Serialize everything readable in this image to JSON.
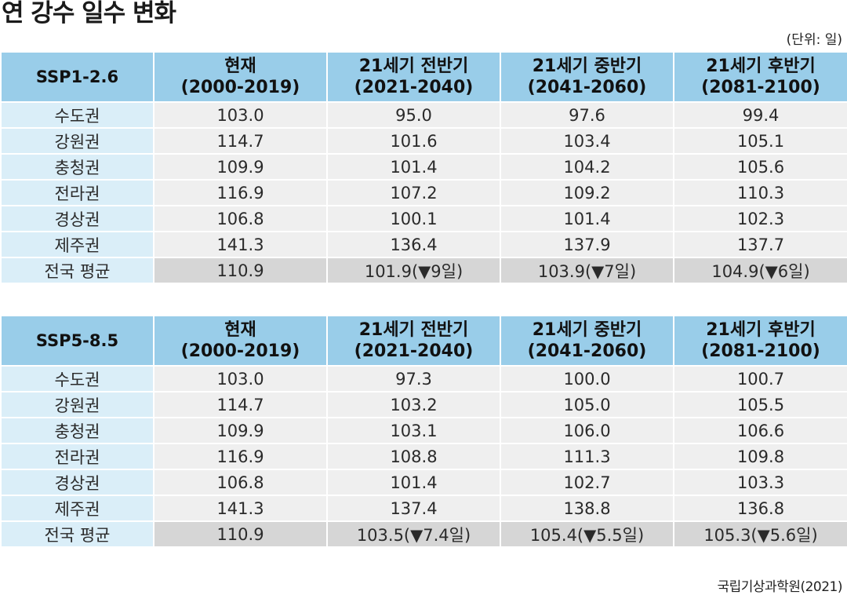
{
  "title": "연 강수 일수 변화",
  "unit": "(단위: 일)",
  "source": "국립기상과학원(2021)",
  "tables": [
    {
      "scenario": "SSP1-2.6",
      "headers": [
        {
          "line1": "현재",
          "line2": "(2000-2019)"
        },
        {
          "line1": "21세기 전반기",
          "line2": "(2021-2040)"
        },
        {
          "line1": "21세기 중반기",
          "line2": "(2041-2060)"
        },
        {
          "line1": "21세기 후반기",
          "line2": "(2081-2100)"
        }
      ],
      "rows": [
        {
          "region": "수도권",
          "values": [
            "103.0",
            "95.0",
            "97.6",
            "99.4"
          ]
        },
        {
          "region": "강원권",
          "values": [
            "114.7",
            "101.6",
            "103.4",
            "105.1"
          ]
        },
        {
          "region": "충청권",
          "values": [
            "109.9",
            "101.4",
            "104.2",
            "105.6"
          ]
        },
        {
          "region": "전라권",
          "values": [
            "116.9",
            "107.2",
            "109.2",
            "110.3"
          ]
        },
        {
          "region": "경상권",
          "values": [
            "106.8",
            "100.1",
            "101.4",
            "102.3"
          ]
        },
        {
          "region": "제주권",
          "values": [
            "141.3",
            "136.4",
            "137.9",
            "137.7"
          ]
        },
        {
          "region": "전국 평균",
          "values": [
            "110.9",
            "101.9(▼9일)",
            "103.9(▼7일)",
            "104.9(▼6일)"
          ]
        }
      ]
    },
    {
      "scenario": "SSP5-8.5",
      "headers": [
        {
          "line1": "현재",
          "line2": "(2000-2019)"
        },
        {
          "line1": "21세기 전반기",
          "line2": "(2021-2040)"
        },
        {
          "line1": "21세기 중반기",
          "line2": "(2041-2060)"
        },
        {
          "line1": "21세기 후반기",
          "line2": "(2081-2100)"
        }
      ],
      "rows": [
        {
          "region": "수도권",
          "values": [
            "103.0",
            "97.3",
            "100.0",
            "100.7"
          ]
        },
        {
          "region": "강원권",
          "values": [
            "114.7",
            "103.2",
            "105.0",
            "105.5"
          ]
        },
        {
          "region": "충청권",
          "values": [
            "109.9",
            "103.1",
            "106.0",
            "106.6"
          ]
        },
        {
          "region": "전라권",
          "values": [
            "116.9",
            "108.8",
            "111.3",
            "109.8"
          ]
        },
        {
          "region": "경상권",
          "values": [
            "106.8",
            "101.4",
            "102.7",
            "103.3"
          ]
        },
        {
          "region": "제주권",
          "values": [
            "141.3",
            "137.4",
            "138.8",
            "136.8"
          ]
        },
        {
          "region": "전국 평균",
          "values": [
            "110.9",
            "103.5(▼7.4일)",
            "105.4(▼5.5일)",
            "105.3(▼5.6일)"
          ]
        }
      ]
    }
  ]
}
